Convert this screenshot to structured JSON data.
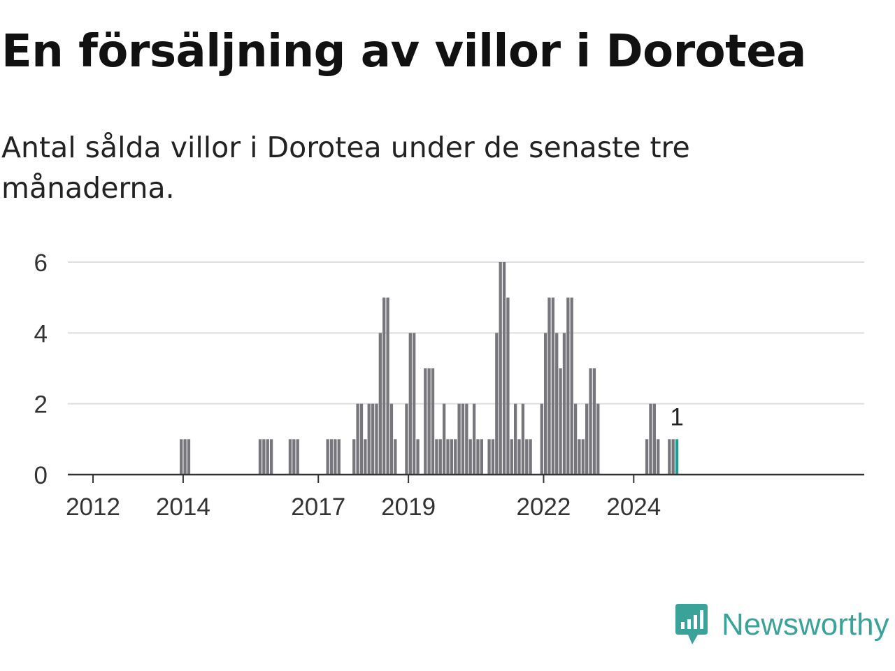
{
  "title": "En försäljning av villor i Dorotea",
  "subtitle": "Antal sålda villor i Dorotea under de senaste tre månaderna.",
  "brand": {
    "name": "Newsworthy",
    "icon": "newsworthy-logo-icon",
    "color": "#3aa399"
  },
  "colors": {
    "bar": "#76767c",
    "highlight": "#1f9c92",
    "grid": "#dddddd",
    "axis": "#333333"
  },
  "chart_data": {
    "type": "bar",
    "x_unit": "month",
    "x_start": "2011-07",
    "values": [
      0,
      0,
      0,
      0,
      0,
      0,
      0,
      0,
      0,
      0,
      0,
      0,
      0,
      0,
      0,
      0,
      0,
      0,
      0,
      0,
      0,
      0,
      0,
      0,
      0,
      0,
      0,
      0,
      0,
      1,
      1,
      1,
      0,
      0,
      0,
      0,
      0,
      0,
      0,
      0,
      0,
      0,
      0,
      0,
      0,
      0,
      0,
      0,
      0,
      0,
      1,
      1,
      1,
      1,
      0,
      0,
      0,
      0,
      1,
      1,
      1,
      0,
      0,
      0,
      0,
      0,
      0,
      0,
      1,
      1,
      1,
      1,
      0,
      0,
      0,
      1,
      2,
      2,
      1,
      2,
      2,
      2,
      4,
      5,
      5,
      2,
      1,
      0,
      0,
      2,
      4,
      4,
      1,
      0,
      3,
      3,
      3,
      1,
      1,
      2,
      1,
      1,
      1,
      2,
      2,
      2,
      1,
      2,
      1,
      1,
      0,
      1,
      1,
      4,
      6,
      6,
      5,
      1,
      2,
      1,
      2,
      1,
      1,
      0,
      0,
      2,
      4,
      5,
      5,
      4,
      3,
      4,
      5,
      5,
      2,
      1,
      1,
      2,
      3,
      3,
      2,
      0,
      0,
      0,
      0,
      0,
      0,
      0,
      0,
      0,
      0,
      0,
      0,
      1,
      2,
      2,
      1,
      0,
      0,
      1,
      1,
      1
    ],
    "highlight_last": true,
    "last_value_label": "1",
    "x_ticks": [
      {
        "label": "2012",
        "year": 2012
      },
      {
        "label": "2014",
        "year": 2014
      },
      {
        "label": "2017",
        "year": 2017
      },
      {
        "label": "2019",
        "year": 2019
      },
      {
        "label": "2022",
        "year": 2022
      },
      {
        "label": "2024",
        "year": 2024
      }
    ],
    "y_ticks": [
      "0",
      "2",
      "4",
      "6"
    ],
    "ylim": [
      0,
      6
    ],
    "grid": true,
    "title": "En försäljning av villor i Dorotea",
    "xlabel": "",
    "ylabel": ""
  }
}
